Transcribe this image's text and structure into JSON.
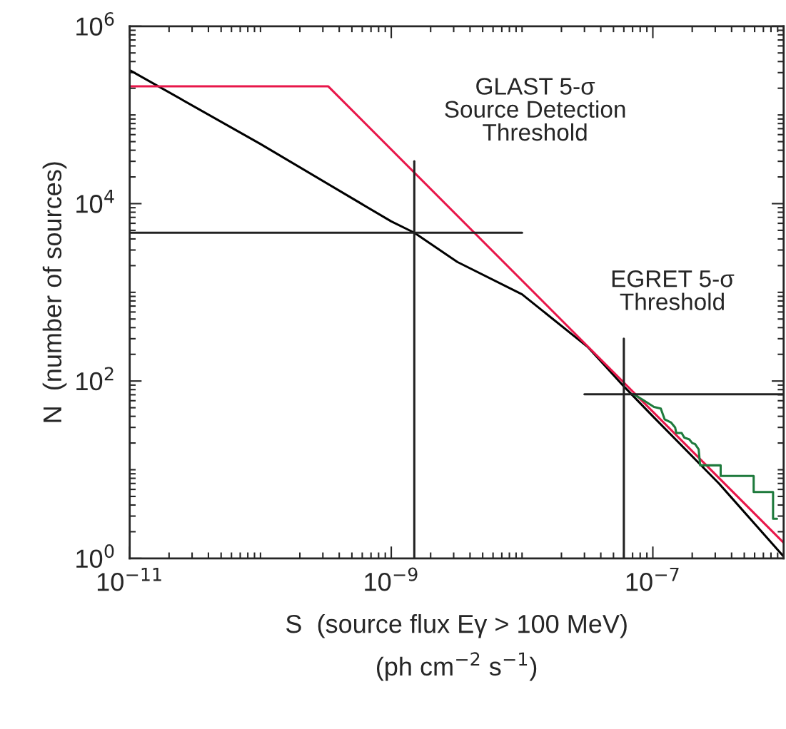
{
  "chart_data": {
    "type": "line",
    "xlabel": "S  (source flux Eγ > 100 MeV)\n(ph cm$^{−2}$ s$^{−1}$)",
    "ylabel": "N  (number of sources)",
    "log": "xy",
    "xlim": [
      1e-11,
      1e-06
    ],
    "ylim": [
      1,
      1000000
    ],
    "xticks": [
      {
        "value": 1e-11,
        "label": "10$^{−11}$"
      },
      {
        "value": 1e-09,
        "label": "10$^{−9}$"
      },
      {
        "value": 1e-07,
        "label": "10$^{−7}$"
      }
    ],
    "yticks": [
      {
        "value": 1,
        "label": "10$^{0}$"
      },
      {
        "value": 100,
        "label": "10$^{2}$"
      },
      {
        "value": 10000,
        "label": "10$^{4}$"
      },
      {
        "value": 1000000,
        "label": "10$^{6}$"
      }
    ],
    "grid": false,
    "legend": false,
    "series": [
      {
        "color": "#000000",
        "x": [
          1e-11,
          1e-10,
          1e-09,
          1.5e-09,
          3.2e-09,
          1e-08,
          3.2e-08,
          6e-08,
          1e-07,
          3.2e-07,
          1e-06
        ],
        "values": [
          320000,
          47000,
          6300,
          4700,
          2200,
          950,
          240,
          87,
          40,
          7,
          1.05
        ]
      },
      {
        "color": "#e8174a",
        "x": [
          1e-11,
          3.3e-10,
          1e-06
        ],
        "values": [
          210000,
          210000,
          1.5
        ]
      },
      {
        "color": "#1e7a3c",
        "x": [
          7.1e-08,
          8.3e-08,
          1.02e-07,
          1.15e-07,
          1.23e-07,
          1.38e-07,
          1.48e-07,
          1.51e-07,
          1.66e-07,
          1.74e-07,
          1.9e-07,
          2e-07,
          2.1e-07,
          2.24e-07,
          2.3e-07,
          3.3e-07,
          3.3e-07,
          5.9e-07,
          5.9e-07,
          8.3e-07,
          8.3e-07,
          8.9e-07
        ],
        "values": [
          71,
          62,
          51,
          49,
          37,
          34,
          30,
          26,
          26,
          23,
          22,
          20,
          19.5,
          17,
          11.2,
          11.2,
          8.5,
          8.5,
          5.6,
          5.6,
          2.8,
          2.8
        ]
      },
      {
        "color": "#222222",
        "x": [
          1.5e-09,
          1.5e-09
        ],
        "values": [
          1,
          30000
        ]
      },
      {
        "color": "#222222",
        "x": [
          1e-11,
          1e-08
        ],
        "values": [
          4700,
          4700
        ]
      },
      {
        "color": "#222222",
        "x": [
          6e-08,
          6e-08
        ],
        "values": [
          1,
          300
        ]
      },
      {
        "color": "#222222",
        "x": [
          3e-08,
          1e-06
        ],
        "values": [
          71,
          71
        ]
      }
    ],
    "annotations": [
      "GLAST 5-σ\nSource Detection\nThreshold",
      "EGRET 5-σ\nThreshold"
    ]
  }
}
